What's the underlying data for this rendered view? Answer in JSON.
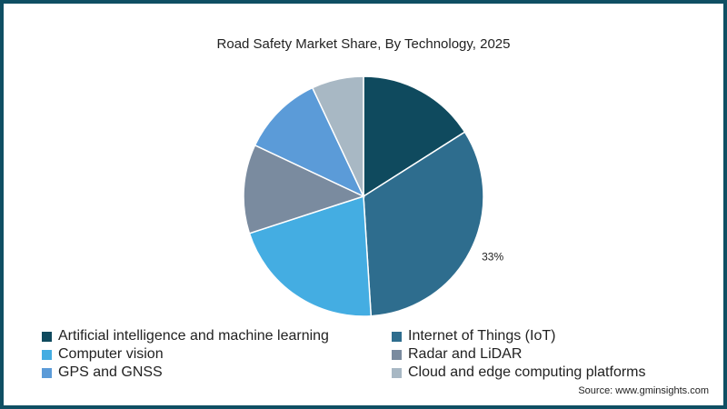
{
  "chart_data": {
    "type": "pie",
    "title": "Road Safety Market Share, By Technology, 2025",
    "series": [
      {
        "name": "Artificial intelligence and machine learning",
        "value": 16,
        "color": "#0f4a5e"
      },
      {
        "name": "Internet of Things (IoT)",
        "value": 33,
        "color": "#2e6d8e",
        "label": "33%"
      },
      {
        "name": "Computer vision",
        "value": 21,
        "color": "#44ade2"
      },
      {
        "name": "Radar and LiDAR",
        "value": 12,
        "color": "#7a8b9f"
      },
      {
        "name": "GPS and GNSS",
        "value": 11,
        "color": "#5b9bd8"
      },
      {
        "name": "Cloud and edge computing platforms",
        "value": 7,
        "color": "#a8b8c4"
      }
    ],
    "legend_position": "bottom",
    "source": "Source: www.gminsights.com"
  }
}
